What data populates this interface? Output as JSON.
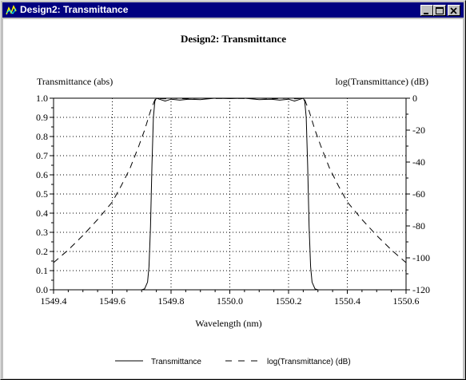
{
  "window": {
    "title": "Design2: Transmittance",
    "icon": "app-icon",
    "controls": [
      "minimize-icon",
      "maximize-icon",
      "close-icon"
    ]
  },
  "chart_data": {
    "type": "line",
    "title": "Design2: Transmittance",
    "xlabel": "Wavelength (nm)",
    "ylabel": "Transmittance (abs)",
    "y2label": "log(Transmittance) (dB)",
    "xlim": [
      1549.4,
      1550.6
    ],
    "ylim": [
      0.0,
      1.0
    ],
    "y2lim": [
      -120,
      0
    ],
    "x_ticks": [
      "1549.4",
      "1549.6",
      "1549.8",
      "1550.0",
      "1550.2",
      "1550.4",
      "1550.6"
    ],
    "y_ticks": [
      "0.0",
      "0.1",
      "0.2",
      "0.3",
      "0.4",
      "0.5",
      "0.6",
      "0.7",
      "0.8",
      "0.9",
      "1.0"
    ],
    "y2_ticks": [
      "0",
      "-20",
      "-40",
      "-60",
      "-80",
      "-100",
      "-120"
    ],
    "grid": true,
    "legend_position": "bottom",
    "series": [
      {
        "name": "Transmittance",
        "axis": "left",
        "style": "solid",
        "x": [
          1549.7,
          1549.71,
          1549.72,
          1549.725,
          1549.73,
          1549.735,
          1549.74,
          1549.745,
          1549.75,
          1549.76,
          1549.78,
          1549.8,
          1549.83,
          1549.86,
          1549.9,
          1549.95,
          1550.0,
          1550.05,
          1550.1,
          1550.14,
          1550.17,
          1550.2,
          1550.22,
          1550.24,
          1550.25,
          1550.255,
          1550.26,
          1550.265,
          1550.27,
          1550.275,
          1550.28,
          1550.29,
          1550.3
        ],
        "y": [
          0.0,
          0.005,
          0.04,
          0.12,
          0.33,
          0.65,
          0.9,
          0.985,
          1.0,
          0.995,
          0.985,
          0.995,
          0.99,
          0.995,
          0.993,
          1.0,
          0.998,
          1.0,
          0.993,
          0.995,
          0.99,
          0.995,
          0.985,
          0.995,
          1.0,
          0.985,
          0.9,
          0.65,
          0.33,
          0.12,
          0.04,
          0.005,
          0.0
        ]
      },
      {
        "name": "log(Transmittance) (dB)",
        "axis": "right",
        "style": "dashed",
        "x": [
          1549.4,
          1549.45,
          1549.5,
          1549.55,
          1549.6,
          1549.63,
          1549.66,
          1549.69,
          1549.71,
          1549.73,
          1549.745,
          1549.75,
          1549.78,
          1549.8,
          1549.85,
          1549.9,
          1549.95,
          1550.0,
          1550.05,
          1550.1,
          1550.15,
          1550.2,
          1550.22,
          1550.25,
          1550.255,
          1550.27,
          1550.29,
          1550.31,
          1550.34,
          1550.37,
          1550.4,
          1550.45,
          1550.5,
          1550.55,
          1550.6
        ],
        "y": [
          -103,
          -95,
          -86,
          -76,
          -65,
          -55,
          -44,
          -30,
          -20,
          -8,
          -1,
          0,
          -0.4,
          0,
          -0.3,
          0,
          -0.2,
          0,
          -0.2,
          0,
          -0.3,
          0,
          -0.4,
          0,
          -1,
          -8,
          -20,
          -30,
          -44,
          -55,
          -65,
          -76,
          -86,
          -95,
          -103
        ]
      }
    ]
  }
}
